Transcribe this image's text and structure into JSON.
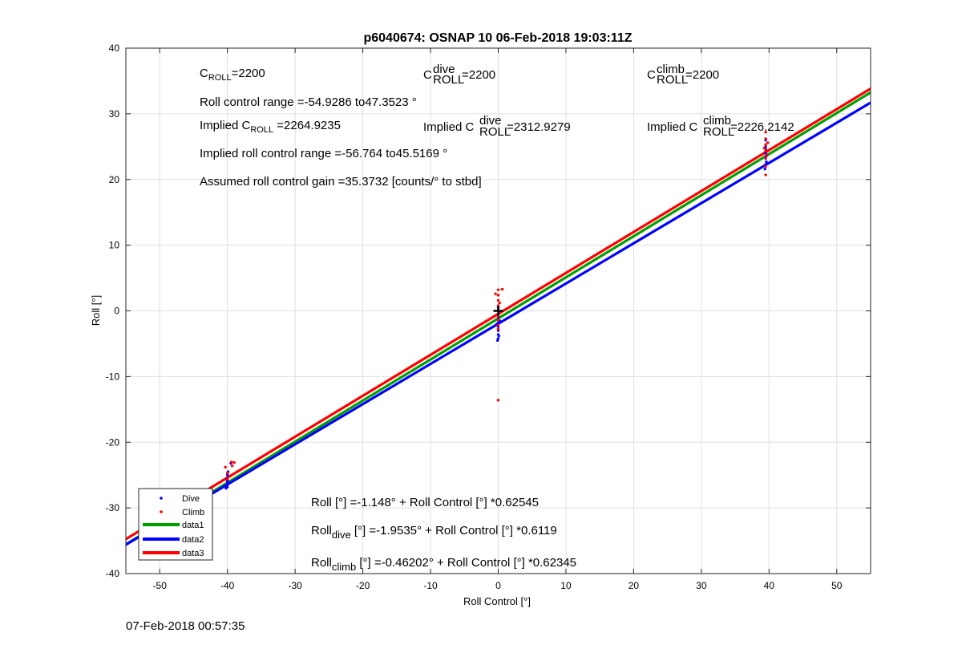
{
  "chart_data": {
    "type": "scatter",
    "title": "p6040674: OSNAP 10 06-Feb-2018 19:03:11Z",
    "xlabel": "Roll Control [°]",
    "ylabel": "Roll [°]",
    "xlim": [
      -55,
      55
    ],
    "ylim": [
      -40,
      40
    ],
    "xticks": [
      -50,
      -40,
      -30,
      -20,
      -10,
      0,
      10,
      20,
      30,
      40,
      50
    ],
    "yticks": [
      -40,
      -30,
      -20,
      -10,
      0,
      10,
      20,
      30,
      40
    ],
    "grid": true,
    "legend_position": "bottom-left",
    "series": [
      {
        "name": "Dive",
        "kind": "scatter",
        "color": "#0000ff",
        "points": [
          [
            -40,
            -25
          ],
          [
            -40,
            -25.8
          ],
          [
            -40,
            -26.3
          ],
          [
            -40,
            -26.8
          ],
          [
            -40.2,
            -27
          ],
          [
            -39.9,
            -24.5
          ],
          [
            -39.5,
            -23.2
          ],
          [
            -40.1,
            -25.5
          ],
          [
            -40,
            -26
          ],
          [
            0,
            -1
          ],
          [
            0,
            -1.8
          ],
          [
            0,
            -2.4
          ],
          [
            0,
            -3
          ],
          [
            0,
            -3.6
          ],
          [
            0,
            -4.2
          ],
          [
            -0.2,
            -2
          ],
          [
            0.2,
            -1.5
          ],
          [
            0,
            0.5
          ],
          [
            0,
            -0.5
          ],
          [
            0.1,
            -3.8
          ],
          [
            -0.1,
            -4.5
          ],
          [
            0,
            -2.8
          ],
          [
            39.5,
            22.3
          ],
          [
            39.5,
            23.2
          ],
          [
            39.5,
            24
          ],
          [
            39.5,
            25
          ],
          [
            39.5,
            26
          ],
          [
            39.6,
            22.7
          ],
          [
            39.6,
            23.6
          ],
          [
            39.5,
            24.6
          ],
          [
            39.4,
            21.6
          ]
        ]
      },
      {
        "name": "Climb",
        "kind": "scatter",
        "color": "#ff0000",
        "points": [
          [
            -40,
            -25.6
          ],
          [
            -40,
            -24.7
          ],
          [
            -39.3,
            -23.6
          ],
          [
            -39,
            -23.1
          ],
          [
            -39.4,
            -23
          ],
          [
            -40.3,
            -23.8
          ],
          [
            0,
            3.2
          ],
          [
            0,
            2.4
          ],
          [
            0,
            1.6
          ],
          [
            0,
            0.8
          ],
          [
            0,
            0
          ],
          [
            0,
            -0.8
          ],
          [
            0,
            -1.4
          ],
          [
            0,
            -2.2
          ],
          [
            0,
            -2.8
          ],
          [
            0.6,
            3.3
          ],
          [
            -0.4,
            2.6
          ],
          [
            0.2,
            1.2
          ],
          [
            0,
            -13.6
          ],
          [
            39.5,
            20.7
          ],
          [
            39.5,
            22
          ],
          [
            39.5,
            23.3
          ],
          [
            39.5,
            24.4
          ],
          [
            39.5,
            25.3
          ],
          [
            39.5,
            26.2
          ],
          [
            39.8,
            25.6
          ],
          [
            39.3,
            24.8
          ],
          [
            39.7,
            23.8
          ],
          [
            39.5,
            27.2
          ]
        ]
      },
      {
        "name": "data1",
        "kind": "line",
        "color": "#00a000",
        "intercept": -1.148,
        "slope": 0.62545
      },
      {
        "name": "data2",
        "kind": "line",
        "color": "#0000ff",
        "intercept": -1.9535,
        "slope": 0.6119
      },
      {
        "name": "data3",
        "kind": "line",
        "color": "#ff0000",
        "intercept": -0.46202,
        "slope": 0.62345
      }
    ],
    "center_marker": {
      "x": 0,
      "y": 0,
      "color": "#000000"
    },
    "legend": [
      "Dive",
      "Climb",
      "data1",
      "data2",
      "data3"
    ],
    "annotations": {
      "c_roll": {
        "main": "C",
        "sub": "ROLL",
        "value": "=2200"
      },
      "c_roll_dive": {
        "main": "C",
        "sup": "dive",
        "sub": "ROLL",
        "value": " =2200"
      },
      "c_roll_climb": {
        "main": "C",
        "sup": "climb",
        "sub": "ROLL",
        "value": " =2200"
      },
      "roll_control_range": "Roll control range =-54.9286 to47.3523 °",
      "implied_c_roll": {
        "prefix": "Implied C",
        "sub": "ROLL",
        "value": " =2264.9235"
      },
      "implied_c_roll_dive": {
        "prefix": "Implied C",
        "sup": "dive",
        "sub": "ROLL",
        "value": " =2312.9279"
      },
      "implied_c_roll_climb": {
        "prefix": "Implied C",
        "sup": "climb",
        "sub": "ROLL",
        "value": " =2226.2142"
      },
      "implied_roll_range": "Implied roll control range =-56.764 to45.5169 °",
      "gain": "Assumed roll control gain =35.3732 [counts/° to stbd]",
      "fit_all": "Roll [°] =-1.148° + Roll Control [°] *0.62545",
      "fit_dive": {
        "main": "Roll",
        "sub": "dive",
        "rest": " [°] =-1.9535° + Roll Control [°] *0.6119"
      },
      "fit_climb": {
        "main": "Roll",
        "sub": "climb",
        "rest": " [°] =-0.46202° + Roll Control [°] *0.62345"
      }
    }
  },
  "footer": {
    "timestamp": "07-Feb-2018 00:57:35"
  }
}
